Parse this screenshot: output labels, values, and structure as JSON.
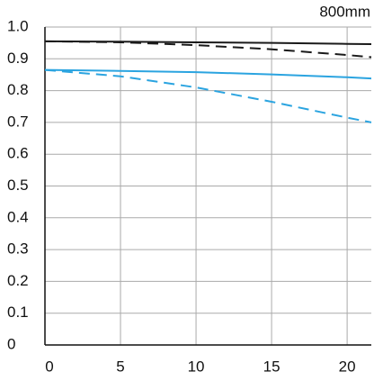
{
  "chart_data": {
    "type": "line",
    "annotation": "800mm",
    "x": [
      0,
      5,
      10,
      15,
      20,
      21.6
    ],
    "series": [
      {
        "color": "#1a1a1a",
        "dash": false,
        "values": [
          0.955,
          0.954,
          0.952,
          0.95,
          0.947,
          0.946
        ]
      },
      {
        "color": "#1a1a1a",
        "dash": true,
        "values": [
          0.955,
          0.952,
          0.943,
          0.93,
          0.912,
          0.905
        ]
      },
      {
        "color": "#2ba4e0",
        "dash": false,
        "values": [
          0.865,
          0.862,
          0.858,
          0.851,
          0.842,
          0.838
        ]
      },
      {
        "color": "#2ba4e0",
        "dash": true,
        "values": [
          0.865,
          0.845,
          0.81,
          0.765,
          0.715,
          0.7
        ]
      }
    ],
    "xlim": [
      0,
      21.6
    ],
    "ylim": [
      0,
      1
    ],
    "xticks": [
      0,
      5,
      10,
      15,
      20
    ],
    "yticks": [
      0,
      0.1,
      0.2,
      0.3,
      0.4,
      0.5,
      0.6,
      0.7,
      0.8,
      0.9,
      {
        "value": 1,
        "label": "1.0"
      }
    ],
    "grid": true
  }
}
